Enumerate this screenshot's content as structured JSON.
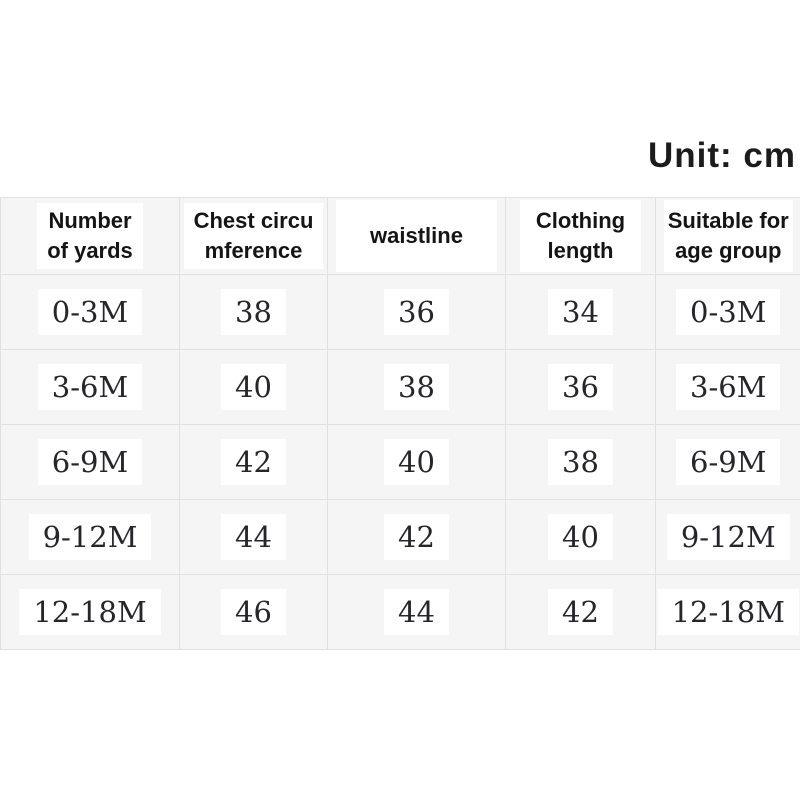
{
  "unit_label": "Unit: cm",
  "colors": {
    "page_bg": "#ffffff",
    "cell_bg": "#f5f5f6",
    "grid_line": "#e1e1e5",
    "text": "#1c1c1c"
  },
  "chart_data": {
    "type": "table",
    "title": "Unit: cm",
    "headers": [
      "Number of yards",
      "Chest circumference",
      "waistline",
      "Clothing length",
      "Suitable for age group"
    ],
    "rows": [
      [
        "0-3M",
        "38",
        "36",
        "34",
        "0-3M"
      ],
      [
        "3-6M",
        "40",
        "38",
        "36",
        "3-6M"
      ],
      [
        "6-9M",
        "42",
        "40",
        "38",
        "6-9M"
      ],
      [
        "9-12M",
        "44",
        "42",
        "40",
        "9-12M"
      ],
      [
        "12-18M",
        "46",
        "44",
        "42",
        "12-18M"
      ]
    ]
  },
  "table": {
    "header_lines": [
      [
        "Number",
        "of yards"
      ],
      [
        "Chest circu",
        "mference"
      ],
      [
        "waistline"
      ],
      [
        "Clothing",
        "length"
      ],
      [
        "Suitable for",
        "age group"
      ]
    ],
    "rows": [
      [
        "0-3M",
        "38",
        "36",
        "34",
        "0-3M"
      ],
      [
        "3-6M",
        "40",
        "38",
        "36",
        "3-6M"
      ],
      [
        "6-9M",
        "42",
        "40",
        "38",
        "6-9M"
      ],
      [
        "9-12M",
        "44",
        "42",
        "40",
        "9-12M"
      ],
      [
        "12-18M",
        "46",
        "44",
        "42",
        "12-18M"
      ]
    ]
  }
}
